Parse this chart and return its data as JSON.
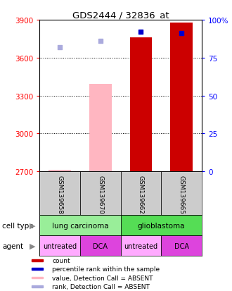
{
  "title": "GDS2444 / 32836_at",
  "samples": [
    "GSM139658",
    "GSM139670",
    "GSM139662",
    "GSM139665"
  ],
  "bar_values": [
    2710,
    3390,
    3760,
    3880
  ],
  "bar_colors": [
    "#FFB6C1",
    "#FFB6C1",
    "#CC0000",
    "#CC0000"
  ],
  "bar_absent": [
    true,
    true,
    false,
    false
  ],
  "rank_dots": [
    82,
    86,
    92,
    91
  ],
  "rank_dot_colors": [
    "#AAAADD",
    "#AAAADD",
    "#0000CC",
    "#0000CC"
  ],
  "rank_dot_absent": [
    true,
    true,
    false,
    false
  ],
  "ylim_left": [
    2700,
    3900
  ],
  "ylim_right": [
    0,
    100
  ],
  "yticks_left": [
    2700,
    3000,
    3300,
    3600,
    3900
  ],
  "yticks_right": [
    0,
    25,
    50,
    75,
    100
  ],
  "ytick_labels_right": [
    "0",
    "25",
    "50",
    "75",
    "100%"
  ],
  "cell_type_groups": [
    {
      "label": "lung carcinoma",
      "color": "#99EE99",
      "span": [
        0,
        2
      ]
    },
    {
      "label": "glioblastoma",
      "color": "#55DD55",
      "span": [
        2,
        4
      ]
    }
  ],
  "agent_groups": [
    {
      "label": "untreated",
      "color": "#FFAAFF",
      "span": [
        0,
        1
      ]
    },
    {
      "label": "DCA",
      "color": "#DD44DD",
      "span": [
        1,
        2
      ]
    },
    {
      "label": "untreated",
      "color": "#FFAAFF",
      "span": [
        2,
        3
      ]
    },
    {
      "label": "DCA",
      "color": "#DD44DD",
      "span": [
        3,
        4
      ]
    }
  ],
  "legend_items": [
    {
      "color": "#CC0000",
      "label": "count"
    },
    {
      "color": "#0000CC",
      "label": "percentile rank within the sample"
    },
    {
      "color": "#FFB6C1",
      "label": "value, Detection Call = ABSENT"
    },
    {
      "color": "#AAAADD",
      "label": "rank, Detection Call = ABSENT"
    }
  ],
  "background_color": "#FFFFFF",
  "plot_bg": "#FFFFFF",
  "cell_type_label": "cell type",
  "agent_label": "agent",
  "bar_bottom": 2700,
  "sample_bg": "#CCCCCC"
}
